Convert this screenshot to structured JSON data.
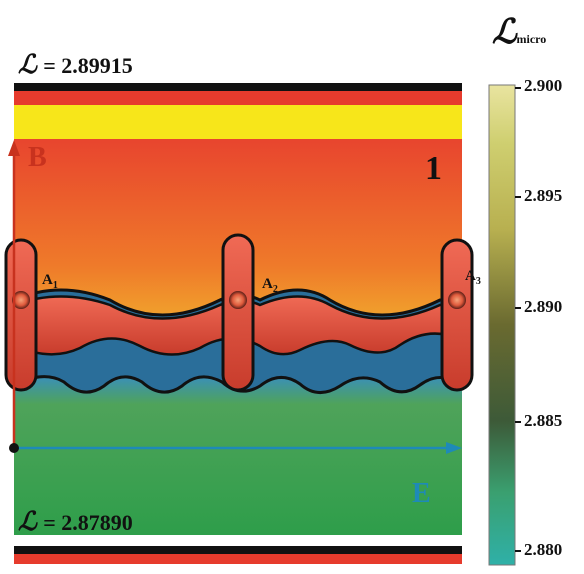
{
  "top_label": {
    "symbol": "ℒ",
    "text": "= 2.89915"
  },
  "bottom_label": {
    "symbol": "ℒ",
    "text": "= 2.87890"
  },
  "colorbar": {
    "title_symbol": "ℒ",
    "title_sub": "micro",
    "ticks": [
      "2.900",
      "2.895",
      "2.890",
      "2.885",
      "2.880"
    ]
  },
  "panel_number": "1",
  "axis_b_label": "B",
  "axis_e_label": "E",
  "point_labels": [
    {
      "name": "A",
      "sub": "1"
    },
    {
      "name": "A",
      "sub": "2"
    },
    {
      "name": "A",
      "sub": "3"
    }
  ]
}
